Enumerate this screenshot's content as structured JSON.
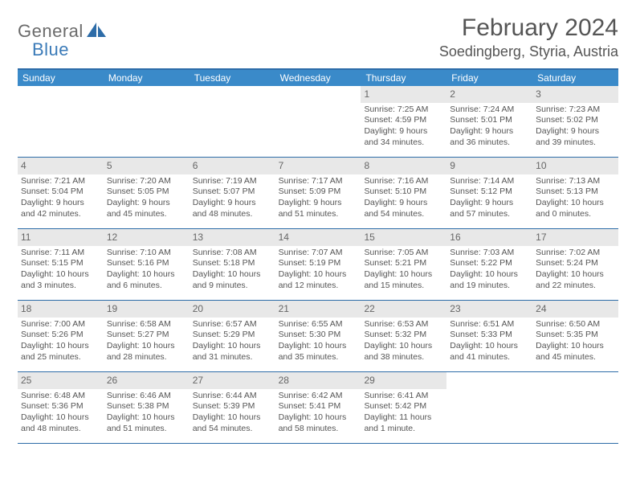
{
  "logo": {
    "text1": "General",
    "text2": "Blue"
  },
  "header": {
    "month_title": "February 2024",
    "location": "Soedingberg, Styria, Austria"
  },
  "colors": {
    "header_bg": "#3a8ac9",
    "border": "#2d6ca8",
    "shade": "#e8e8e8",
    "text": "#555555",
    "logo_gray": "#6b6b6b",
    "logo_blue": "#3a7ab8"
  },
  "dow": [
    "Sunday",
    "Monday",
    "Tuesday",
    "Wednesday",
    "Thursday",
    "Friday",
    "Saturday"
  ],
  "weeks": [
    [
      {
        "n": "",
        "sr": "",
        "ss": "",
        "dl": ""
      },
      {
        "n": "",
        "sr": "",
        "ss": "",
        "dl": ""
      },
      {
        "n": "",
        "sr": "",
        "ss": "",
        "dl": ""
      },
      {
        "n": "",
        "sr": "",
        "ss": "",
        "dl": ""
      },
      {
        "n": "1",
        "sr": "Sunrise: 7:25 AM",
        "ss": "Sunset: 4:59 PM",
        "dl": "Daylight: 9 hours and 34 minutes."
      },
      {
        "n": "2",
        "sr": "Sunrise: 7:24 AM",
        "ss": "Sunset: 5:01 PM",
        "dl": "Daylight: 9 hours and 36 minutes."
      },
      {
        "n": "3",
        "sr": "Sunrise: 7:23 AM",
        "ss": "Sunset: 5:02 PM",
        "dl": "Daylight: 9 hours and 39 minutes."
      }
    ],
    [
      {
        "n": "4",
        "sr": "Sunrise: 7:21 AM",
        "ss": "Sunset: 5:04 PM",
        "dl": "Daylight: 9 hours and 42 minutes."
      },
      {
        "n": "5",
        "sr": "Sunrise: 7:20 AM",
        "ss": "Sunset: 5:05 PM",
        "dl": "Daylight: 9 hours and 45 minutes."
      },
      {
        "n": "6",
        "sr": "Sunrise: 7:19 AM",
        "ss": "Sunset: 5:07 PM",
        "dl": "Daylight: 9 hours and 48 minutes."
      },
      {
        "n": "7",
        "sr": "Sunrise: 7:17 AM",
        "ss": "Sunset: 5:09 PM",
        "dl": "Daylight: 9 hours and 51 minutes."
      },
      {
        "n": "8",
        "sr": "Sunrise: 7:16 AM",
        "ss": "Sunset: 5:10 PM",
        "dl": "Daylight: 9 hours and 54 minutes."
      },
      {
        "n": "9",
        "sr": "Sunrise: 7:14 AM",
        "ss": "Sunset: 5:12 PM",
        "dl": "Daylight: 9 hours and 57 minutes."
      },
      {
        "n": "10",
        "sr": "Sunrise: 7:13 AM",
        "ss": "Sunset: 5:13 PM",
        "dl": "Daylight: 10 hours and 0 minutes."
      }
    ],
    [
      {
        "n": "11",
        "sr": "Sunrise: 7:11 AM",
        "ss": "Sunset: 5:15 PM",
        "dl": "Daylight: 10 hours and 3 minutes."
      },
      {
        "n": "12",
        "sr": "Sunrise: 7:10 AM",
        "ss": "Sunset: 5:16 PM",
        "dl": "Daylight: 10 hours and 6 minutes."
      },
      {
        "n": "13",
        "sr": "Sunrise: 7:08 AM",
        "ss": "Sunset: 5:18 PM",
        "dl": "Daylight: 10 hours and 9 minutes."
      },
      {
        "n": "14",
        "sr": "Sunrise: 7:07 AM",
        "ss": "Sunset: 5:19 PM",
        "dl": "Daylight: 10 hours and 12 minutes."
      },
      {
        "n": "15",
        "sr": "Sunrise: 7:05 AM",
        "ss": "Sunset: 5:21 PM",
        "dl": "Daylight: 10 hours and 15 minutes."
      },
      {
        "n": "16",
        "sr": "Sunrise: 7:03 AM",
        "ss": "Sunset: 5:22 PM",
        "dl": "Daylight: 10 hours and 19 minutes."
      },
      {
        "n": "17",
        "sr": "Sunrise: 7:02 AM",
        "ss": "Sunset: 5:24 PM",
        "dl": "Daylight: 10 hours and 22 minutes."
      }
    ],
    [
      {
        "n": "18",
        "sr": "Sunrise: 7:00 AM",
        "ss": "Sunset: 5:26 PM",
        "dl": "Daylight: 10 hours and 25 minutes."
      },
      {
        "n": "19",
        "sr": "Sunrise: 6:58 AM",
        "ss": "Sunset: 5:27 PM",
        "dl": "Daylight: 10 hours and 28 minutes."
      },
      {
        "n": "20",
        "sr": "Sunrise: 6:57 AM",
        "ss": "Sunset: 5:29 PM",
        "dl": "Daylight: 10 hours and 31 minutes."
      },
      {
        "n": "21",
        "sr": "Sunrise: 6:55 AM",
        "ss": "Sunset: 5:30 PM",
        "dl": "Daylight: 10 hours and 35 minutes."
      },
      {
        "n": "22",
        "sr": "Sunrise: 6:53 AM",
        "ss": "Sunset: 5:32 PM",
        "dl": "Daylight: 10 hours and 38 minutes."
      },
      {
        "n": "23",
        "sr": "Sunrise: 6:51 AM",
        "ss": "Sunset: 5:33 PM",
        "dl": "Daylight: 10 hours and 41 minutes."
      },
      {
        "n": "24",
        "sr": "Sunrise: 6:50 AM",
        "ss": "Sunset: 5:35 PM",
        "dl": "Daylight: 10 hours and 45 minutes."
      }
    ],
    [
      {
        "n": "25",
        "sr": "Sunrise: 6:48 AM",
        "ss": "Sunset: 5:36 PM",
        "dl": "Daylight: 10 hours and 48 minutes."
      },
      {
        "n": "26",
        "sr": "Sunrise: 6:46 AM",
        "ss": "Sunset: 5:38 PM",
        "dl": "Daylight: 10 hours and 51 minutes."
      },
      {
        "n": "27",
        "sr": "Sunrise: 6:44 AM",
        "ss": "Sunset: 5:39 PM",
        "dl": "Daylight: 10 hours and 54 minutes."
      },
      {
        "n": "28",
        "sr": "Sunrise: 6:42 AM",
        "ss": "Sunset: 5:41 PM",
        "dl": "Daylight: 10 hours and 58 minutes."
      },
      {
        "n": "29",
        "sr": "Sunrise: 6:41 AM",
        "ss": "Sunset: 5:42 PM",
        "dl": "Daylight: 11 hours and 1 minute."
      },
      {
        "n": "",
        "sr": "",
        "ss": "",
        "dl": ""
      },
      {
        "n": "",
        "sr": "",
        "ss": "",
        "dl": ""
      }
    ]
  ]
}
